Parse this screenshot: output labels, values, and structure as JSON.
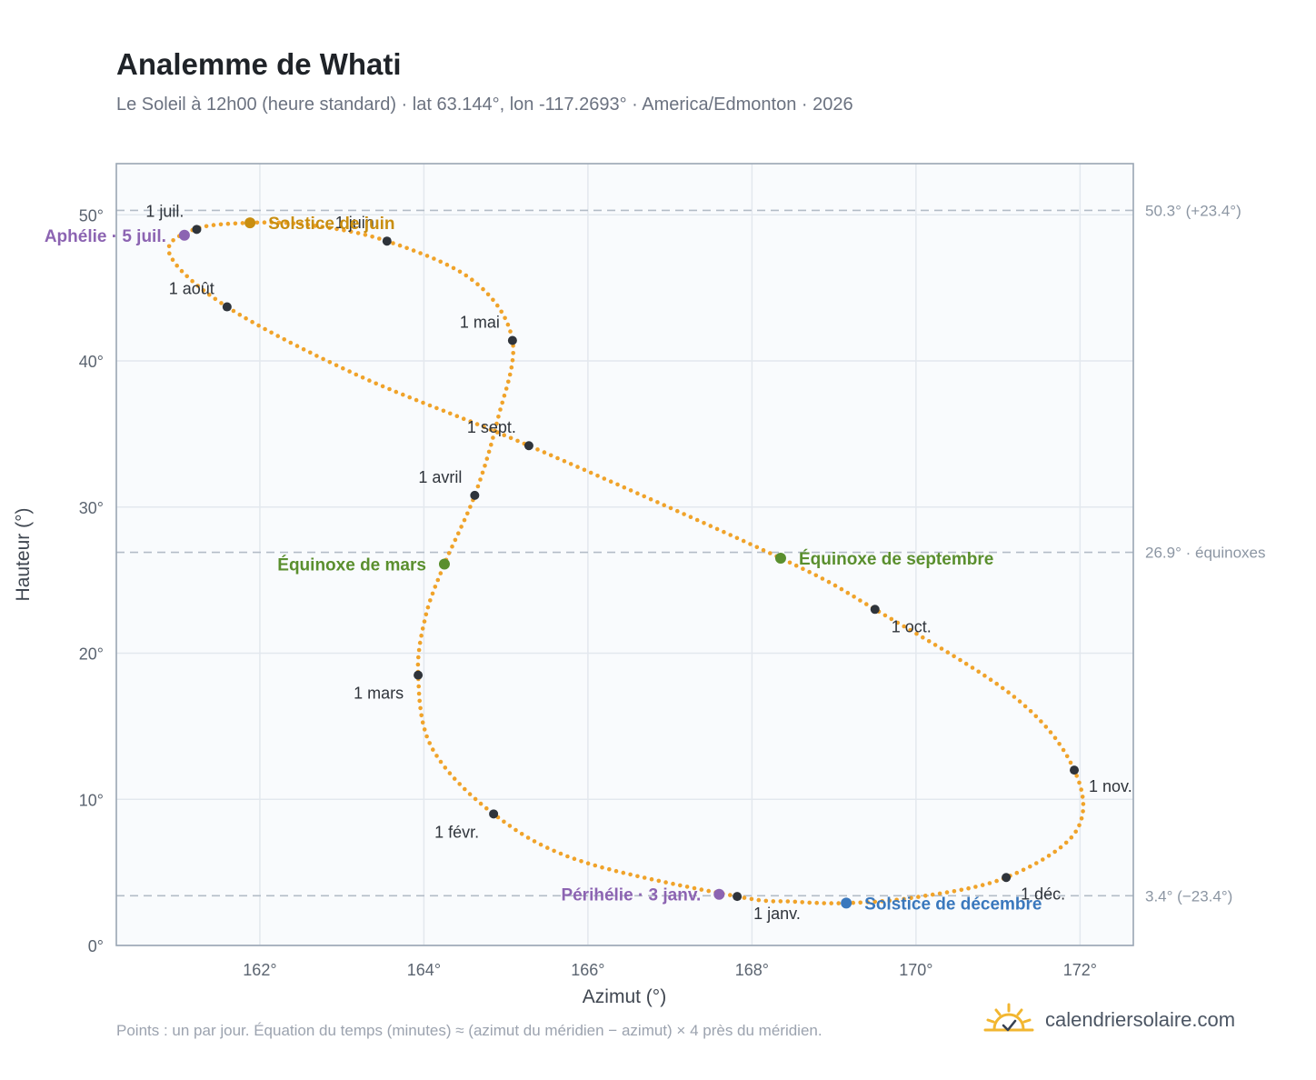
{
  "header": {
    "title": "Analemme de Whati",
    "subtitle": "Le Soleil à 12h00 (heure standard) · lat 63.144°, lon -117.2693° · America/Edmonton · 2026"
  },
  "footer": {
    "note": "Points : un par jour. Équation du temps (minutes) ≈ (azimut du méridien − azimut) × 4 près du méridien.",
    "brand": "calendriersolaire.com"
  },
  "chart_data": {
    "type": "scatter",
    "xlabel": "Azimut (°)",
    "ylabel": "Hauteur (°)",
    "xlim": [
      160.25,
      172.65
    ],
    "ylim": [
      0,
      53.5
    ],
    "x_ticks": [
      {
        "value": 162,
        "label": "162°"
      },
      {
        "value": 164,
        "label": "164°"
      },
      {
        "value": 166,
        "label": "166°"
      },
      {
        "value": 168,
        "label": "168°"
      },
      {
        "value": 170,
        "label": "170°"
      },
      {
        "value": 172,
        "label": "172°"
      }
    ],
    "y_ticks": [
      {
        "value": 0,
        "label": "0°"
      },
      {
        "value": 10,
        "label": "10°"
      },
      {
        "value": 20,
        "label": "20°"
      },
      {
        "value": 30,
        "label": "30°"
      },
      {
        "value": 40,
        "label": "40°"
      },
      {
        "value": 50,
        "label": "50°"
      }
    ],
    "grid": true,
    "reference_lines": [
      {
        "y": 50.3,
        "label": "50.3° (+23.4°)"
      },
      {
        "y": 26.9,
        "label": "26.9° · équinoxes"
      },
      {
        "y": 3.4,
        "label": "3.4° (−23.4°)"
      }
    ],
    "curve_color": "#f0a32a",
    "path": [
      {
        "x": 167.82,
        "y": 3.35
      },
      {
        "x": 165.9,
        "y": 5.8
      },
      {
        "x": 164.85,
        "y": 9.0
      },
      {
        "x": 164.1,
        "y": 13.5
      },
      {
        "x": 163.93,
        "y": 18.5
      },
      {
        "x": 164.02,
        "y": 22.5
      },
      {
        "x": 164.25,
        "y": 26.1
      },
      {
        "x": 164.62,
        "y": 30.8
      },
      {
        "x": 164.9,
        "y": 36.0
      },
      {
        "x": 165.08,
        "y": 41.4
      },
      {
        "x": 164.6,
        "y": 45.5
      },
      {
        "x": 163.55,
        "y": 48.2
      },
      {
        "x": 162.6,
        "y": 49.3
      },
      {
        "x": 161.88,
        "y": 49.45
      },
      {
        "x": 161.2,
        "y": 49.0
      },
      {
        "x": 160.9,
        "y": 47.3
      },
      {
        "x": 161.6,
        "y": 43.7
      },
      {
        "x": 163.2,
        "y": 39.0
      },
      {
        "x": 165.28,
        "y": 34.2
      },
      {
        "x": 168.35,
        "y": 26.5
      },
      {
        "x": 169.5,
        "y": 23.0
      },
      {
        "x": 171.2,
        "y": 17.0
      },
      {
        "x": 171.93,
        "y": 12.0
      },
      {
        "x": 171.95,
        "y": 7.8
      },
      {
        "x": 171.1,
        "y": 4.65
      },
      {
        "x": 170.0,
        "y": 3.3
      },
      {
        "x": 169.15,
        "y": 2.9
      },
      {
        "x": 168.5,
        "y": 3.0
      },
      {
        "x": 167.82,
        "y": 3.35
      }
    ],
    "months": [
      {
        "label": "1 janv.",
        "x": 167.82,
        "y": 3.35,
        "anchor": "below"
      },
      {
        "label": "1 févr.",
        "x": 164.85,
        "y": 9.0,
        "anchor": "below-left"
      },
      {
        "label": "1 mars",
        "x": 163.93,
        "y": 18.5,
        "anchor": "below-left"
      },
      {
        "label": "1 avril",
        "x": 164.62,
        "y": 30.8,
        "anchor": "above-left"
      },
      {
        "label": "1 mai",
        "x": 165.08,
        "y": 41.4,
        "anchor": "above-left"
      },
      {
        "label": "1 juin",
        "x": 163.55,
        "y": 48.2,
        "anchor": "above-left"
      },
      {
        "label": "1 juil.",
        "x": 161.23,
        "y": 49.0,
        "anchor": "above-left"
      },
      {
        "label": "1 août",
        "x": 161.6,
        "y": 43.7,
        "anchor": "above-left"
      },
      {
        "label": "1 sept.",
        "x": 165.28,
        "y": 34.2,
        "anchor": "above-left"
      },
      {
        "label": "1 oct.",
        "x": 169.5,
        "y": 23.0,
        "anchor": "below"
      },
      {
        "label": "1 nov.",
        "x": 171.93,
        "y": 12.0,
        "anchor": "below-right"
      },
      {
        "label": "1 déc.",
        "x": 171.1,
        "y": 4.65,
        "anchor": "below-right"
      }
    ],
    "events": [
      {
        "label": "Solstice de juin",
        "x": 161.88,
        "y": 49.45,
        "color": "#c98e10",
        "side": "right"
      },
      {
        "label": "Équinoxe de mars",
        "x": 164.25,
        "y": 26.1,
        "color": "#5a8f2e",
        "side": "left"
      },
      {
        "label": "Équinoxe de septembre",
        "x": 168.35,
        "y": 26.5,
        "color": "#5a8f2e",
        "side": "right"
      },
      {
        "label": "Solstice de décembre",
        "x": 169.15,
        "y": 2.9,
        "color": "#3a78bd",
        "side": "right"
      },
      {
        "label": "Aphélie · 5 juil.",
        "x": 161.08,
        "y": 48.6,
        "color": "#8c64b2",
        "side": "left"
      },
      {
        "label": "Périhélie · 3 janv.",
        "x": 167.6,
        "y": 3.5,
        "color": "#8c64b2",
        "side": "left"
      }
    ]
  }
}
